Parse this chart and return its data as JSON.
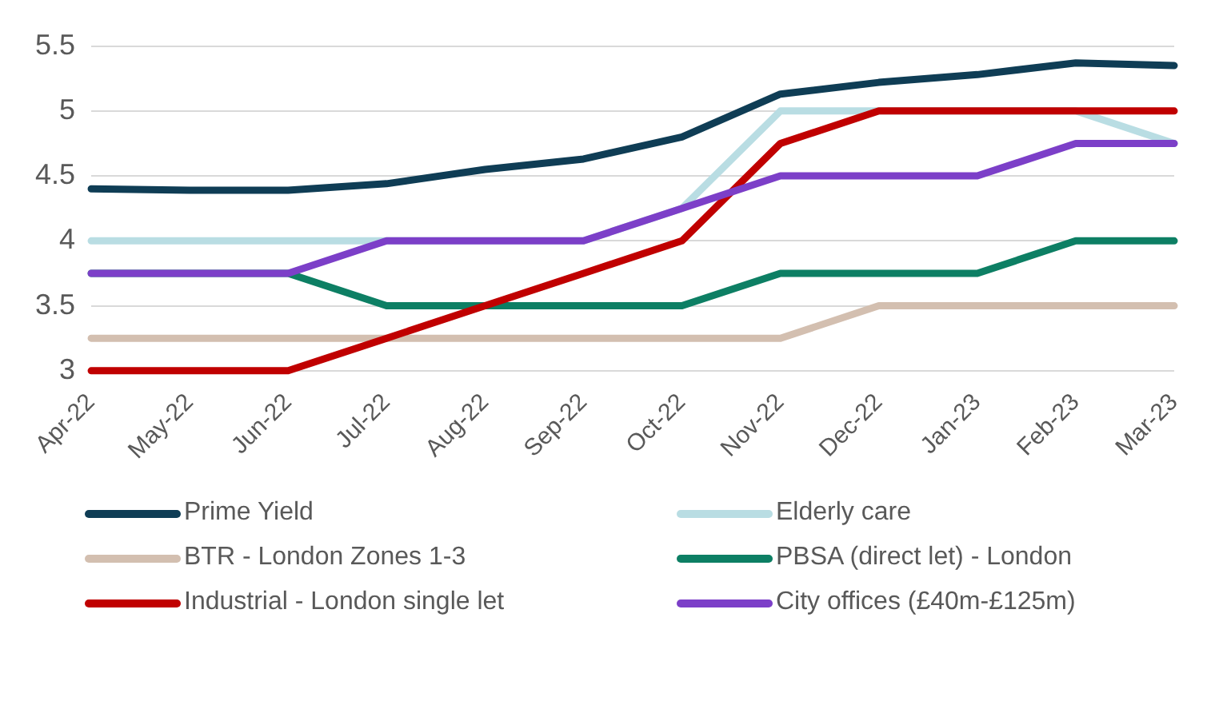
{
  "chart_data": {
    "type": "line",
    "categories": [
      "Apr-22",
      "May-22",
      "Jun-22",
      "Jul-22",
      "Aug-22",
      "Sep-22",
      "Oct-22",
      "Nov-22",
      "Dec-22",
      "Jan-23",
      "Feb-23",
      "Mar-23"
    ],
    "series": [
      {
        "name": "Prime Yield",
        "color": "#0f3d55",
        "values": [
          4.4,
          4.39,
          4.39,
          4.44,
          4.55,
          4.63,
          4.8,
          5.13,
          5.22,
          5.28,
          5.37,
          5.35
        ]
      },
      {
        "name": "Elderly care",
        "color": "#b9dde3",
        "values": [
          4,
          4,
          4,
          4,
          4,
          4,
          4.25,
          5,
          5,
          5,
          5,
          4.75
        ]
      },
      {
        "name": "BTR - London Zones 1-3",
        "color": "#d3bfb0",
        "values": [
          3.25,
          3.25,
          3.25,
          3.25,
          3.25,
          3.25,
          3.25,
          3.25,
          3.5,
          3.5,
          3.5,
          3.5
        ]
      },
      {
        "name": "PBSA (direct let) - London",
        "color": "#0d7f64",
        "values": [
          3.75,
          3.75,
          3.75,
          3.5,
          3.5,
          3.5,
          3.5,
          3.75,
          3.75,
          3.75,
          4,
          4
        ]
      },
      {
        "name": "Industrial - London single let",
        "color": "#c00000",
        "values": [
          3,
          3,
          3,
          3.25,
          3.5,
          3.75,
          4,
          4.75,
          5,
          5,
          5,
          5
        ]
      },
      {
        "name": "City offices (£40m-£125m)",
        "color": "#7c3fc8",
        "values": [
          3.75,
          3.75,
          3.75,
          4,
          4,
          4,
          4.25,
          4.5,
          4.5,
          4.5,
          4.75,
          4.75
        ]
      }
    ],
    "ylim": [
      3,
      5.5
    ],
    "yticks": [
      3,
      3.5,
      4,
      4.5,
      5,
      5.5
    ],
    "grid": "y",
    "legend": "bottom",
    "marker": "none",
    "line_style": "solid"
  }
}
